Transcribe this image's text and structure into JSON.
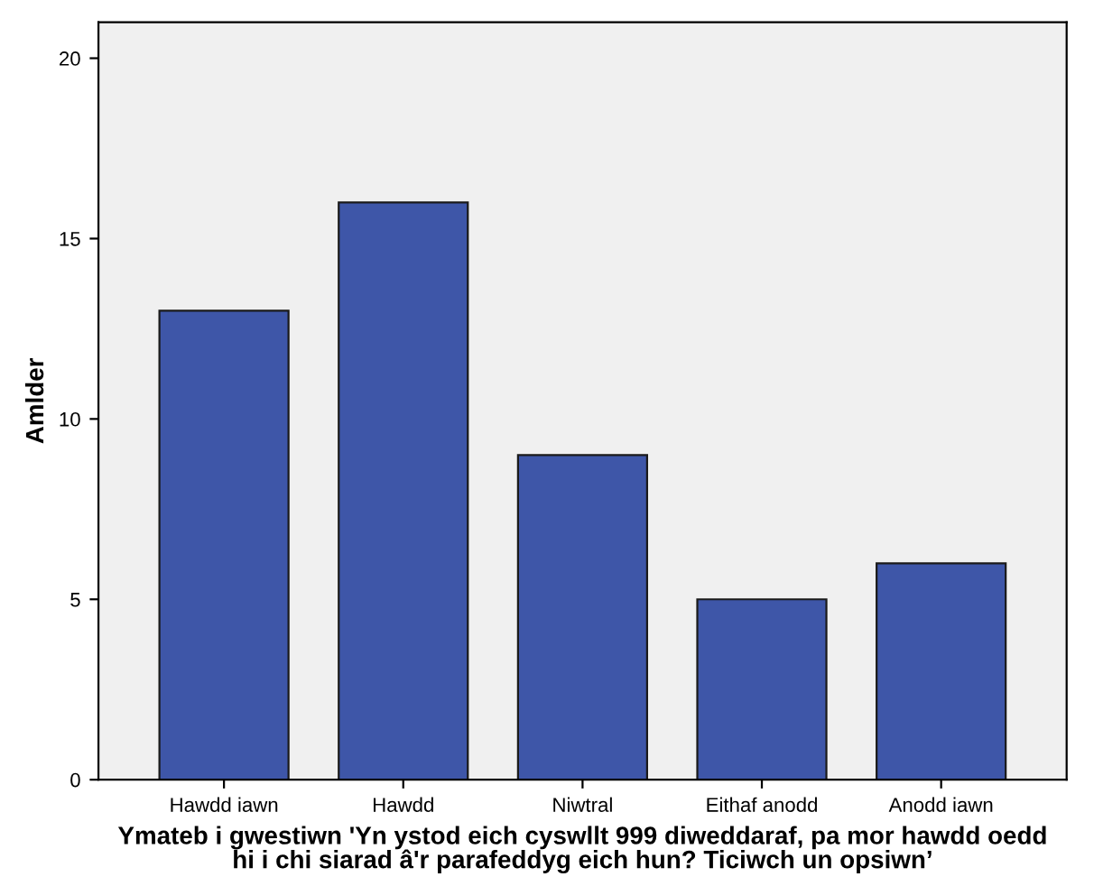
{
  "chart_data": {
    "type": "bar",
    "categories": [
      "Hawdd iawn",
      "Hawdd",
      "Niwtral",
      "Eithaf anodd",
      "Anodd iawn"
    ],
    "values": [
      13,
      16,
      9,
      5,
      6
    ],
    "color": "#3e56a8",
    "ylim": [
      0,
      21
    ],
    "yticks": [
      0,
      5,
      10,
      15,
      20
    ],
    "xlabel": "Ymateb i gwestiwn 'Yn ystod eich cyswllt 999 diweddaraf, pa mor hawdd oedd\nhi i chi siarad â'r parafeddyg eich hun? Ticiwch un opsiwn’",
    "ylabel": "Amlder",
    "grid": false,
    "legend": false
  }
}
